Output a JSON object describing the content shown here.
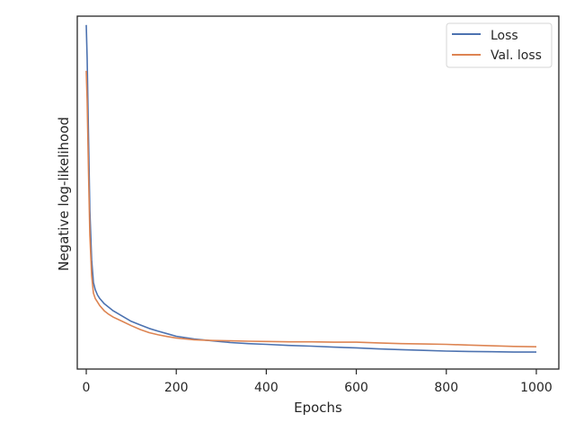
{
  "chart_data": {
    "type": "line",
    "title": "",
    "xlabel": "Epochs",
    "ylabel": "Negative log-likelihood",
    "xlim": [
      -20,
      1050
    ],
    "ylim": [
      0.0,
      1.0
    ],
    "y_tick_labels_shown": false,
    "x_ticks": [
      0,
      200,
      400,
      600,
      800,
      1000
    ],
    "x_tick_labels": [
      "0",
      "200",
      "400",
      "600",
      "800",
      "1000"
    ],
    "legend": {
      "position": "top-right",
      "entries": [
        "Loss",
        "Val. loss"
      ]
    },
    "grid": false,
    "series": [
      {
        "name": "Loss",
        "color": "#4c72b0",
        "x": [
          0,
          2,
          5,
          8,
          12,
          16,
          20,
          25,
          30,
          40,
          50,
          60,
          80,
          100,
          120,
          140,
          160,
          180,
          200,
          240,
          280,
          320,
          360,
          400,
          450,
          500,
          550,
          600,
          650,
          700,
          750,
          800,
          850,
          900,
          950,
          1000
        ],
        "y": [
          0.975,
          0.88,
          0.66,
          0.45,
          0.31,
          0.245,
          0.225,
          0.21,
          0.2,
          0.185,
          0.175,
          0.165,
          0.15,
          0.135,
          0.125,
          0.115,
          0.107,
          0.1,
          0.093,
          0.085,
          0.08,
          0.075,
          0.072,
          0.07,
          0.067,
          0.065,
          0.062,
          0.06,
          0.057,
          0.055,
          0.053,
          0.051,
          0.05,
          0.049,
          0.048,
          0.048
        ]
      },
      {
        "name": "Val. loss",
        "color": "#dd8452",
        "x": [
          0,
          2,
          5,
          8,
          12,
          16,
          20,
          25,
          30,
          40,
          50,
          60,
          80,
          100,
          120,
          140,
          160,
          180,
          200,
          240,
          280,
          320,
          360,
          400,
          450,
          500,
          550,
          600,
          650,
          700,
          750,
          800,
          850,
          900,
          950,
          1000
        ],
        "y": [
          0.845,
          0.76,
          0.56,
          0.38,
          0.265,
          0.215,
          0.2,
          0.19,
          0.18,
          0.165,
          0.155,
          0.147,
          0.135,
          0.123,
          0.112,
          0.103,
          0.097,
          0.092,
          0.088,
          0.083,
          0.081,
          0.08,
          0.079,
          0.078,
          0.077,
          0.077,
          0.076,
          0.076,
          0.074,
          0.072,
          0.071,
          0.07,
          0.068,
          0.066,
          0.064,
          0.063
        ]
      }
    ]
  }
}
